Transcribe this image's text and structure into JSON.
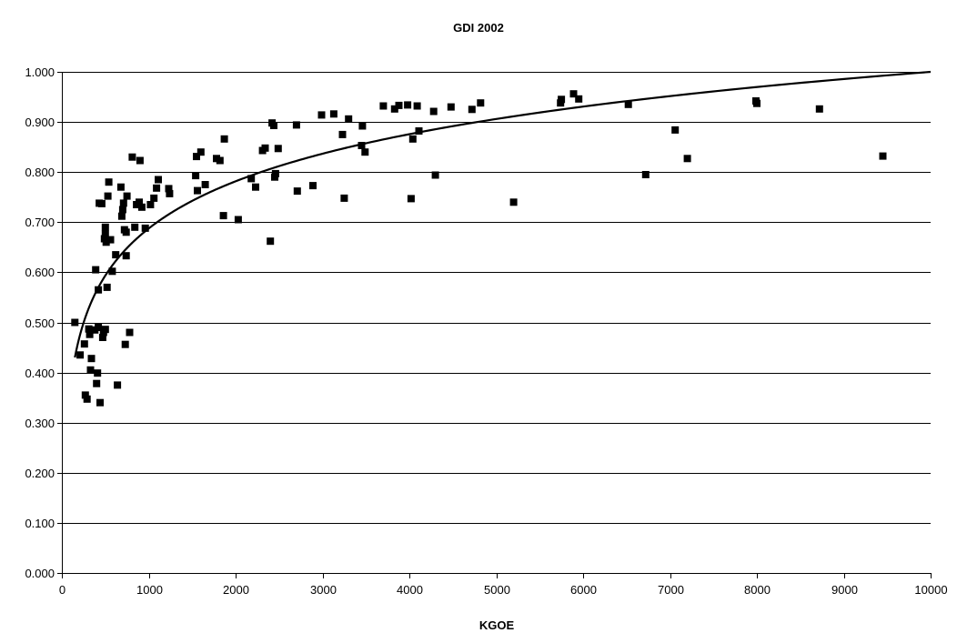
{
  "chart_data": {
    "type": "scatter",
    "title": "GDI 2002",
    "xlabel": "KGOE",
    "ylabel": "",
    "xlim": [
      0,
      10000
    ],
    "ylim": [
      0,
      1
    ],
    "x_ticks": [
      0,
      1000,
      2000,
      3000,
      4000,
      5000,
      6000,
      7000,
      8000,
      9000,
      10000
    ],
    "x_tick_labels": [
      "0",
      "1000",
      "2000",
      "3000",
      "4000",
      "5000",
      "6000",
      "7000",
      "8000",
      "9000",
      "10000"
    ],
    "y_ticks": [
      0,
      0.1,
      0.2,
      0.3,
      0.4,
      0.5,
      0.6,
      0.7,
      0.8,
      0.9,
      1.0
    ],
    "y_tick_labels": [
      "0.000",
      "0.100",
      "0.200",
      "0.300",
      "0.400",
      "0.500",
      "0.600",
      "0.700",
      "0.800",
      "0.900",
      "1.000"
    ],
    "grid": "horizontal",
    "legend": "none",
    "marker_color": "#000000",
    "trendline": {
      "type": "logarithmic",
      "x_range": [
        150,
        10000
      ],
      "y_range": [
        0.43,
        1.0
      ],
      "color": "#000000"
    },
    "series": [
      {
        "points": [
          [
            150,
            0.5
          ],
          [
            210,
            0.435
          ],
          [
            260,
            0.457
          ],
          [
            270,
            0.355
          ],
          [
            290,
            0.347
          ],
          [
            310,
            0.487
          ],
          [
            320,
            0.476
          ],
          [
            330,
            0.405
          ],
          [
            340,
            0.428
          ],
          [
            380,
            0.485
          ],
          [
            390,
            0.605
          ],
          [
            400,
            0.378
          ],
          [
            410,
            0.399
          ],
          [
            420,
            0.49
          ],
          [
            420,
            0.565
          ],
          [
            430,
            0.738
          ],
          [
            440,
            0.34
          ],
          [
            460,
            0.737
          ],
          [
            470,
            0.47
          ],
          [
            480,
            0.48
          ],
          [
            490,
            0.667
          ],
          [
            500,
            0.69
          ],
          [
            500,
            0.676
          ],
          [
            500,
            0.486
          ],
          [
            510,
            0.66
          ],
          [
            520,
            0.57
          ],
          [
            530,
            0.752
          ],
          [
            540,
            0.78
          ],
          [
            560,
            0.665
          ],
          [
            580,
            0.602
          ],
          [
            620,
            0.635
          ],
          [
            640,
            0.375
          ],
          [
            680,
            0.77
          ],
          [
            690,
            0.712
          ],
          [
            700,
            0.725
          ],
          [
            710,
            0.738
          ],
          [
            720,
            0.685
          ],
          [
            730,
            0.456
          ],
          [
            740,
            0.68
          ],
          [
            740,
            0.633
          ],
          [
            750,
            0.752
          ],
          [
            780,
            0.48
          ],
          [
            810,
            0.83
          ],
          [
            840,
            0.69
          ],
          [
            860,
            0.735
          ],
          [
            890,
            0.74
          ],
          [
            900,
            0.823
          ],
          [
            920,
            0.73
          ],
          [
            960,
            0.688
          ],
          [
            1020,
            0.735
          ],
          [
            1060,
            0.748
          ],
          [
            1090,
            0.768
          ],
          [
            1110,
            0.785
          ],
          [
            1230,
            0.767
          ],
          [
            1240,
            0.757
          ],
          [
            1540,
            0.793
          ],
          [
            1550,
            0.831
          ],
          [
            1560,
            0.763
          ],
          [
            1600,
            0.84
          ],
          [
            1650,
            0.775
          ],
          [
            1780,
            0.827
          ],
          [
            1820,
            0.823
          ],
          [
            1860,
            0.713
          ],
          [
            1870,
            0.866
          ],
          [
            2030,
            0.705
          ],
          [
            2180,
            0.787
          ],
          [
            2230,
            0.77
          ],
          [
            2310,
            0.843
          ],
          [
            2340,
            0.848
          ],
          [
            2400,
            0.662
          ],
          [
            2420,
            0.898
          ],
          [
            2440,
            0.893
          ],
          [
            2450,
            0.79
          ],
          [
            2460,
            0.797
          ],
          [
            2490,
            0.847
          ],
          [
            2700,
            0.894
          ],
          [
            2710,
            0.762
          ],
          [
            2890,
            0.773
          ],
          [
            2990,
            0.914
          ],
          [
            3130,
            0.916
          ],
          [
            3230,
            0.875
          ],
          [
            3250,
            0.748
          ],
          [
            3300,
            0.906
          ],
          [
            3450,
            0.853
          ],
          [
            3460,
            0.892
          ],
          [
            3490,
            0.84
          ],
          [
            3700,
            0.932
          ],
          [
            3830,
            0.926
          ],
          [
            3880,
            0.933
          ],
          [
            3980,
            0.934
          ],
          [
            4020,
            0.747
          ],
          [
            4040,
            0.866
          ],
          [
            4090,
            0.932
          ],
          [
            4110,
            0.882
          ],
          [
            4280,
            0.921
          ],
          [
            4300,
            0.794
          ],
          [
            4480,
            0.93
          ],
          [
            4720,
            0.925
          ],
          [
            4820,
            0.938
          ],
          [
            5200,
            0.74
          ],
          [
            5740,
            0.938
          ],
          [
            5750,
            0.945
          ],
          [
            5890,
            0.956
          ],
          [
            5950,
            0.946
          ],
          [
            6520,
            0.935
          ],
          [
            6720,
            0.795
          ],
          [
            7060,
            0.884
          ],
          [
            7200,
            0.827
          ],
          [
            7990,
            0.942
          ],
          [
            8000,
            0.937
          ],
          [
            8720,
            0.926
          ],
          [
            9450,
            0.832
          ]
        ]
      }
    ]
  }
}
